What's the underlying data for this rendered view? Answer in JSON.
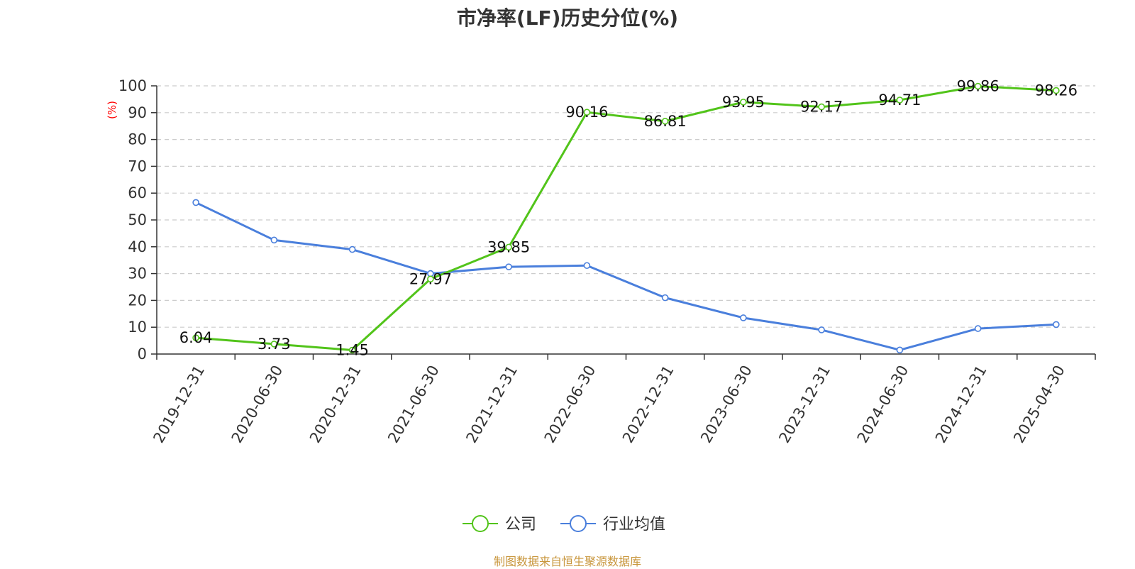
{
  "chart_data": {
    "type": "line",
    "title": "市净率(LF)历史分位(%)",
    "ylabel": "(%)",
    "xlabel": "",
    "ylim": [
      0,
      100
    ],
    "yticks": [
      0,
      10,
      20,
      30,
      40,
      50,
      60,
      70,
      80,
      90,
      100
    ],
    "grid": true,
    "legend_position": "bottom",
    "categories": [
      "2019-12-31",
      "2020-06-30",
      "2020-12-31",
      "2021-06-30",
      "2021-12-31",
      "2022-06-30",
      "2022-12-31",
      "2023-06-30",
      "2023-12-31",
      "2024-06-30",
      "2024-12-31",
      "2025-04-30"
    ],
    "series": [
      {
        "name": "公司",
        "color": "#52c41a",
        "values": [
          6.04,
          3.73,
          1.45,
          27.97,
          39.85,
          90.16,
          86.81,
          93.95,
          92.17,
          94.71,
          99.86,
          98.26
        ],
        "labels": [
          "6.04",
          "3.73",
          "1.45",
          "27.97",
          "39.85",
          "90.16",
          "86.81",
          "93.95",
          "92.17",
          "94.71",
          "99.86",
          "98.26"
        ]
      },
      {
        "name": "行业均值",
        "color": "#4a7fdc",
        "values": [
          56.5,
          42.5,
          39.0,
          30.0,
          32.5,
          33.0,
          21.0,
          13.5,
          9.0,
          1.5,
          9.5,
          11.0
        ]
      }
    ]
  },
  "source": "制图数据来自恒生聚源数据库"
}
